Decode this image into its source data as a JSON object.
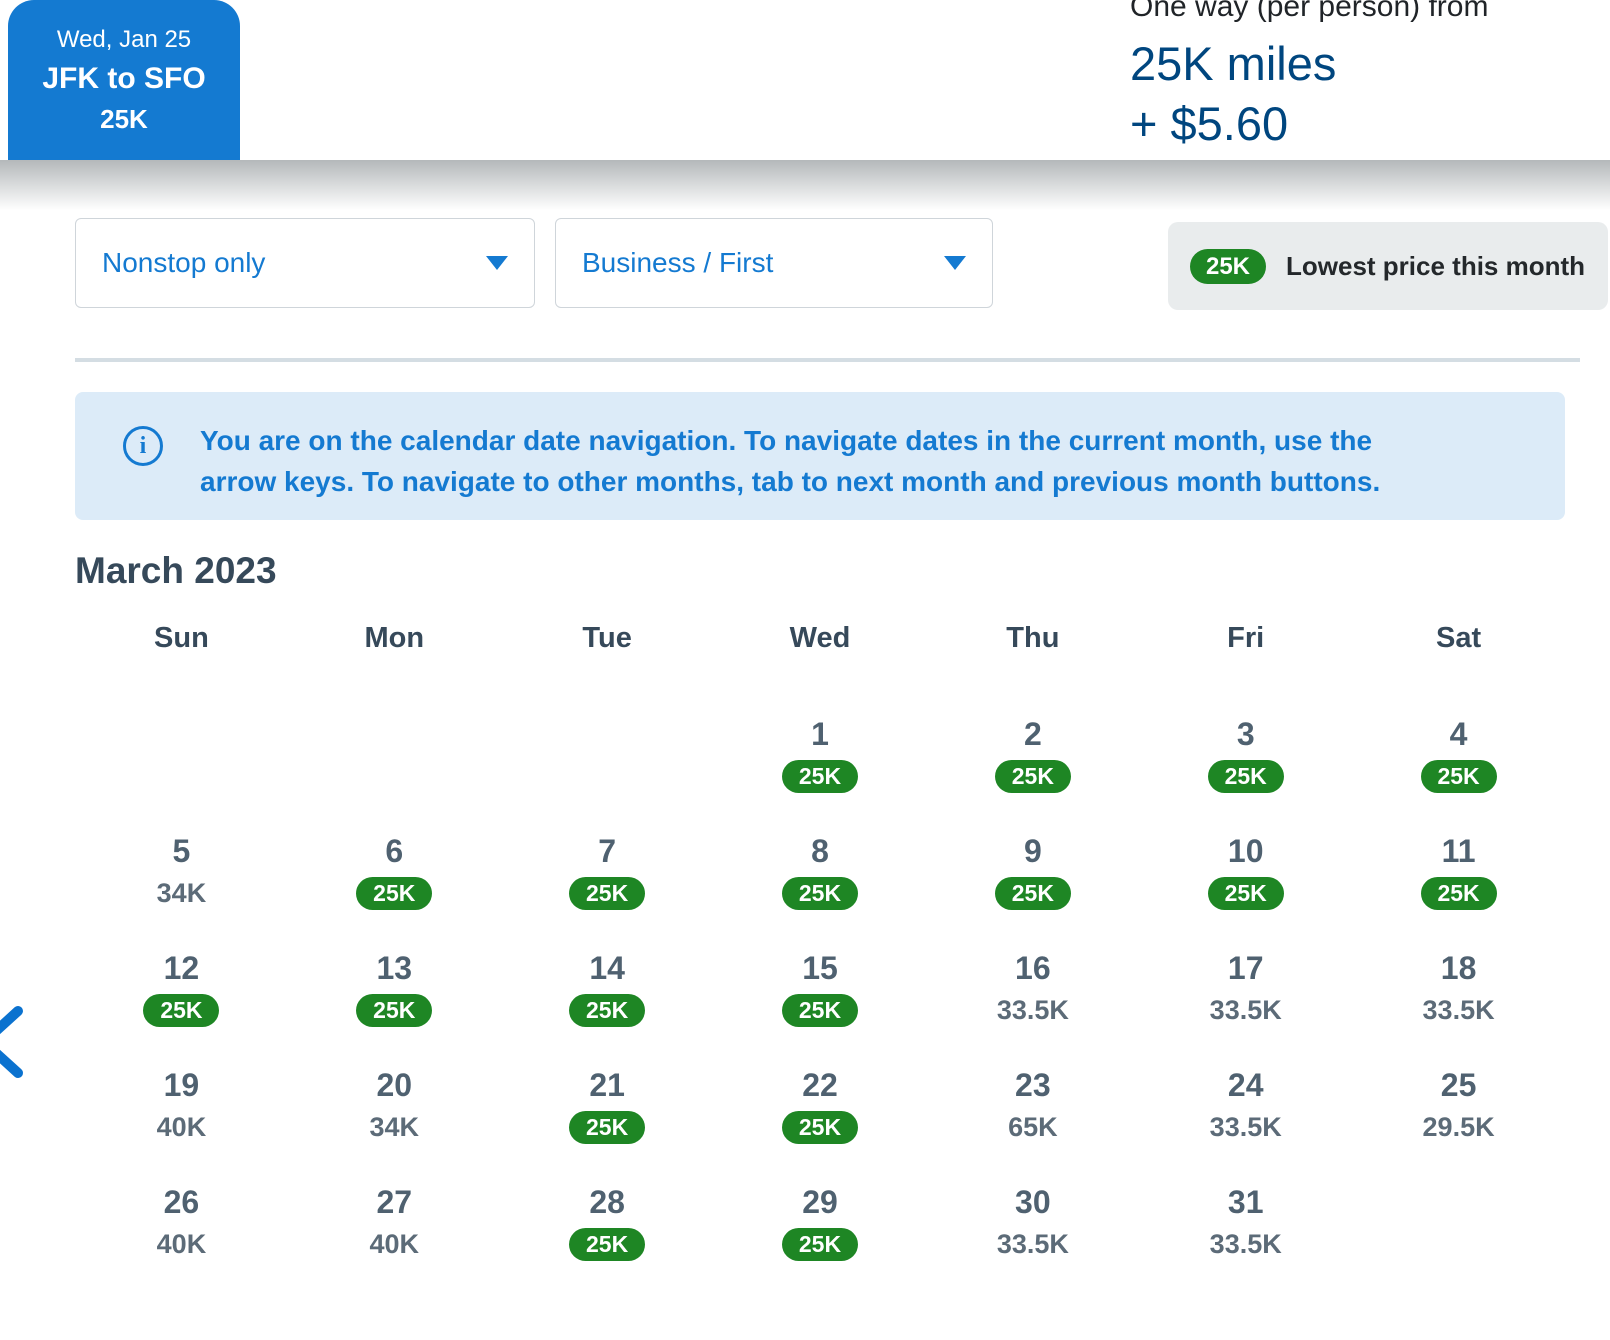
{
  "colors": {
    "brand_blue": "#147ad1",
    "dark_blue": "#00467f",
    "green": "#1e8624",
    "banner_bg": "#dcebf8",
    "legend_bg": "#e9eced"
  },
  "header": {
    "selected_date_card": {
      "date": "Wed, Jan 25",
      "route": "JFK to SFO",
      "price": "25K"
    },
    "price_summary": {
      "label": "One way (per person) from",
      "miles": "25K miles",
      "taxes": "+ $5.60"
    }
  },
  "filters": {
    "stops": {
      "value": "Nonstop only"
    },
    "cabin": {
      "value": "Business / First"
    }
  },
  "legend": {
    "badge": "25K",
    "label": "Lowest price this month"
  },
  "info_banner": {
    "text": "You are on the calendar date navigation. To navigate dates in the current month, use the arrow keys. To navigate to other months, tab to next month and previous month buttons."
  },
  "calendar": {
    "month_title": "March 2023",
    "day_headers": [
      "Sun",
      "Mon",
      "Tue",
      "Wed",
      "Thu",
      "Fri",
      "Sat"
    ],
    "weeks": [
      [
        null,
        null,
        null,
        {
          "day": "1",
          "price": "25K",
          "lowest": true
        },
        {
          "day": "2",
          "price": "25K",
          "lowest": true
        },
        {
          "day": "3",
          "price": "25K",
          "lowest": true
        },
        {
          "day": "4",
          "price": "25K",
          "lowest": true
        }
      ],
      [
        {
          "day": "5",
          "price": "34K",
          "lowest": false
        },
        {
          "day": "6",
          "price": "25K",
          "lowest": true
        },
        {
          "day": "7",
          "price": "25K",
          "lowest": true
        },
        {
          "day": "8",
          "price": "25K",
          "lowest": true
        },
        {
          "day": "9",
          "price": "25K",
          "lowest": true
        },
        {
          "day": "10",
          "price": "25K",
          "lowest": true
        },
        {
          "day": "11",
          "price": "25K",
          "lowest": true
        }
      ],
      [
        {
          "day": "12",
          "price": "25K",
          "lowest": true
        },
        {
          "day": "13",
          "price": "25K",
          "lowest": true
        },
        {
          "day": "14",
          "price": "25K",
          "lowest": true
        },
        {
          "day": "15",
          "price": "25K",
          "lowest": true
        },
        {
          "day": "16",
          "price": "33.5K",
          "lowest": false
        },
        {
          "day": "17",
          "price": "33.5K",
          "lowest": false
        },
        {
          "day": "18",
          "price": "33.5K",
          "lowest": false
        }
      ],
      [
        {
          "day": "19",
          "price": "40K",
          "lowest": false
        },
        {
          "day": "20",
          "price": "34K",
          "lowest": false
        },
        {
          "day": "21",
          "price": "25K",
          "lowest": true
        },
        {
          "day": "22",
          "price": "25K",
          "lowest": true
        },
        {
          "day": "23",
          "price": "65K",
          "lowest": false
        },
        {
          "day": "24",
          "price": "33.5K",
          "lowest": false
        },
        {
          "day": "25",
          "price": "29.5K",
          "lowest": false
        }
      ],
      [
        {
          "day": "26",
          "price": "40K",
          "lowest": false
        },
        {
          "day": "27",
          "price": "40K",
          "lowest": false
        },
        {
          "day": "28",
          "price": "25K",
          "lowest": true
        },
        {
          "day": "29",
          "price": "25K",
          "lowest": true
        },
        {
          "day": "30",
          "price": "33.5K",
          "lowest": false
        },
        {
          "day": "31",
          "price": "33.5K",
          "lowest": false
        },
        null
      ]
    ],
    "nav": {
      "prev_label": "previous month"
    }
  }
}
